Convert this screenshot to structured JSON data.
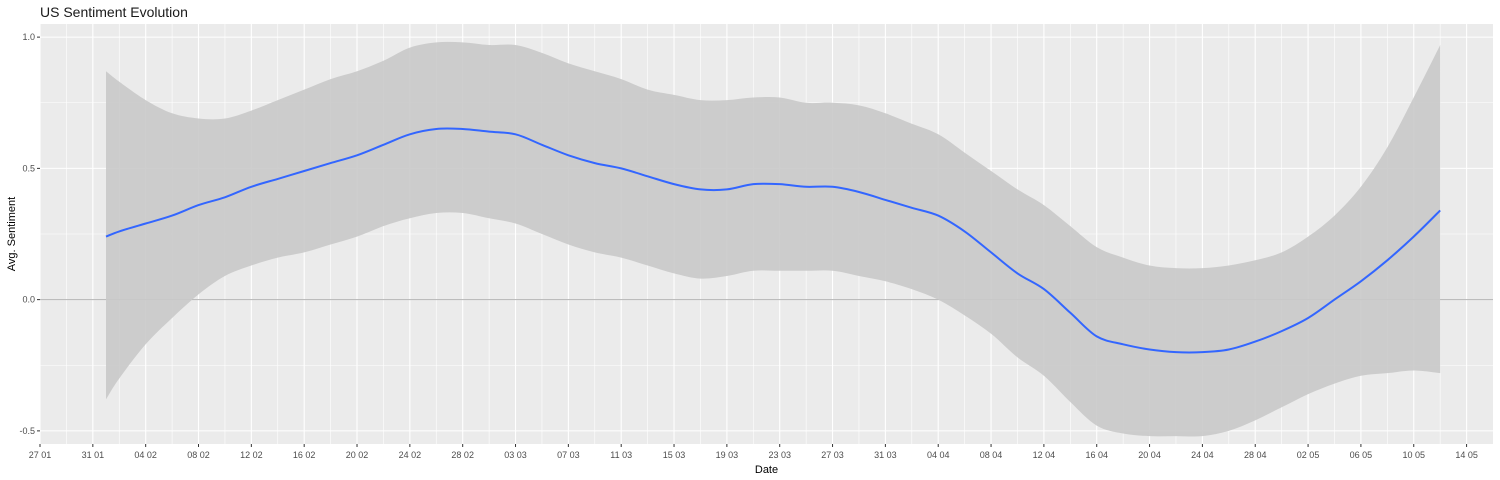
{
  "chart_data": {
    "type": "line",
    "title": "US Sentiment Evolution",
    "xlabel": "Date",
    "ylabel": "Avg. Sentiment",
    "x_range": [
      "2020-01-27",
      "2020-05-16"
    ],
    "ylim": [
      -0.55,
      1.05
    ],
    "x_ticks": [
      {
        "date": "2020-01-27",
        "label": "27 01"
      },
      {
        "date": "2020-01-31",
        "label": "31 01"
      },
      {
        "date": "2020-02-04",
        "label": "04 02"
      },
      {
        "date": "2020-02-08",
        "label": "08 02"
      },
      {
        "date": "2020-02-12",
        "label": "12 02"
      },
      {
        "date": "2020-02-16",
        "label": "16 02"
      },
      {
        "date": "2020-02-20",
        "label": "20 02"
      },
      {
        "date": "2020-02-24",
        "label": "24 02"
      },
      {
        "date": "2020-02-28",
        "label": "28 02"
      },
      {
        "date": "2020-03-03",
        "label": "03 03"
      },
      {
        "date": "2020-03-07",
        "label": "07 03"
      },
      {
        "date": "2020-03-11",
        "label": "11 03"
      },
      {
        "date": "2020-03-15",
        "label": "15 03"
      },
      {
        "date": "2020-03-19",
        "label": "19 03"
      },
      {
        "date": "2020-03-23",
        "label": "23 03"
      },
      {
        "date": "2020-03-27",
        "label": "27 03"
      },
      {
        "date": "2020-03-31",
        "label": "31 03"
      },
      {
        "date": "2020-04-04",
        "label": "04 04"
      },
      {
        "date": "2020-04-08",
        "label": "08 04"
      },
      {
        "date": "2020-04-12",
        "label": "12 04"
      },
      {
        "date": "2020-04-16",
        "label": "16 04"
      },
      {
        "date": "2020-04-20",
        "label": "20 04"
      },
      {
        "date": "2020-04-24",
        "label": "24 04"
      },
      {
        "date": "2020-04-28",
        "label": "28 04"
      },
      {
        "date": "2020-05-02",
        "label": "02 05"
      },
      {
        "date": "2020-05-06",
        "label": "06 05"
      },
      {
        "date": "2020-05-10",
        "label": "10 05"
      },
      {
        "date": "2020-05-14",
        "label": "14 05"
      }
    ],
    "y_ticks": [
      {
        "value": -0.5,
        "label": "-0.5"
      },
      {
        "value": 0.0,
        "label": "0.0"
      },
      {
        "value": 0.5,
        "label": "0.5"
      },
      {
        "value": 1.0,
        "label": "1.0"
      }
    ],
    "reference_line": {
      "y": 0.0
    },
    "grid": true,
    "legend": "none",
    "colors": {
      "line": "#3366ff",
      "ribbon": "#c9c9c9",
      "panel": "#ebebeb",
      "grid": "#ffffff",
      "reference": "#b3b3b3"
    },
    "series": [
      {
        "points": [
          {
            "x": "2020-02-01",
            "y": 0.24,
            "lower": -0.38,
            "upper": 0.87
          },
          {
            "x": "2020-02-02",
            "y": 0.26,
            "lower": -0.3,
            "upper": 0.83
          },
          {
            "x": "2020-02-04",
            "y": 0.29,
            "lower": -0.17,
            "upper": 0.76
          },
          {
            "x": "2020-02-06",
            "y": 0.32,
            "lower": -0.07,
            "upper": 0.71
          },
          {
            "x": "2020-02-08",
            "y": 0.36,
            "lower": 0.02,
            "upper": 0.69
          },
          {
            "x": "2020-02-10",
            "y": 0.39,
            "lower": 0.09,
            "upper": 0.69
          },
          {
            "x": "2020-02-12",
            "y": 0.43,
            "lower": 0.13,
            "upper": 0.72
          },
          {
            "x": "2020-02-14",
            "y": 0.46,
            "lower": 0.16,
            "upper": 0.76
          },
          {
            "x": "2020-02-16",
            "y": 0.49,
            "lower": 0.18,
            "upper": 0.8
          },
          {
            "x": "2020-02-18",
            "y": 0.52,
            "lower": 0.21,
            "upper": 0.84
          },
          {
            "x": "2020-02-20",
            "y": 0.55,
            "lower": 0.24,
            "upper": 0.87
          },
          {
            "x": "2020-02-22",
            "y": 0.59,
            "lower": 0.28,
            "upper": 0.91
          },
          {
            "x": "2020-02-24",
            "y": 0.63,
            "lower": 0.31,
            "upper": 0.96
          },
          {
            "x": "2020-02-26",
            "y": 0.65,
            "lower": 0.33,
            "upper": 0.98
          },
          {
            "x": "2020-02-28",
            "y": 0.65,
            "lower": 0.33,
            "upper": 0.98
          },
          {
            "x": "2020-03-01",
            "y": 0.64,
            "lower": 0.31,
            "upper": 0.97
          },
          {
            "x": "2020-03-03",
            "y": 0.63,
            "lower": 0.29,
            "upper": 0.97
          },
          {
            "x": "2020-03-05",
            "y": 0.59,
            "lower": 0.25,
            "upper": 0.94
          },
          {
            "x": "2020-03-07",
            "y": 0.55,
            "lower": 0.21,
            "upper": 0.9
          },
          {
            "x": "2020-03-09",
            "y": 0.52,
            "lower": 0.18,
            "upper": 0.87
          },
          {
            "x": "2020-03-11",
            "y": 0.5,
            "lower": 0.16,
            "upper": 0.84
          },
          {
            "x": "2020-03-13",
            "y": 0.47,
            "lower": 0.13,
            "upper": 0.8
          },
          {
            "x": "2020-03-15",
            "y": 0.44,
            "lower": 0.1,
            "upper": 0.78
          },
          {
            "x": "2020-03-17",
            "y": 0.42,
            "lower": 0.08,
            "upper": 0.76
          },
          {
            "x": "2020-03-19",
            "y": 0.42,
            "lower": 0.09,
            "upper": 0.76
          },
          {
            "x": "2020-03-21",
            "y": 0.44,
            "lower": 0.11,
            "upper": 0.77
          },
          {
            "x": "2020-03-23",
            "y": 0.44,
            "lower": 0.11,
            "upper": 0.77
          },
          {
            "x": "2020-03-25",
            "y": 0.43,
            "lower": 0.11,
            "upper": 0.75
          },
          {
            "x": "2020-03-27",
            "y": 0.43,
            "lower": 0.11,
            "upper": 0.75
          },
          {
            "x": "2020-03-29",
            "y": 0.41,
            "lower": 0.09,
            "upper": 0.74
          },
          {
            "x": "2020-03-31",
            "y": 0.38,
            "lower": 0.07,
            "upper": 0.71
          },
          {
            "x": "2020-04-02",
            "y": 0.35,
            "lower": 0.04,
            "upper": 0.67
          },
          {
            "x": "2020-04-04",
            "y": 0.32,
            "lower": 0.0,
            "upper": 0.63
          },
          {
            "x": "2020-04-06",
            "y": 0.26,
            "lower": -0.06,
            "upper": 0.56
          },
          {
            "x": "2020-04-08",
            "y": 0.18,
            "lower": -0.13,
            "upper": 0.49
          },
          {
            "x": "2020-04-10",
            "y": 0.1,
            "lower": -0.22,
            "upper": 0.42
          },
          {
            "x": "2020-04-12",
            "y": 0.04,
            "lower": -0.29,
            "upper": 0.36
          },
          {
            "x": "2020-04-14",
            "y": -0.05,
            "lower": -0.39,
            "upper": 0.28
          },
          {
            "x": "2020-04-16",
            "y": -0.14,
            "lower": -0.48,
            "upper": 0.2
          },
          {
            "x": "2020-04-18",
            "y": -0.17,
            "lower": -0.51,
            "upper": 0.16
          },
          {
            "x": "2020-04-20",
            "y": -0.19,
            "lower": -0.52,
            "upper": 0.13
          },
          {
            "x": "2020-04-22",
            "y": -0.2,
            "lower": -0.52,
            "upper": 0.12
          },
          {
            "x": "2020-04-24",
            "y": -0.2,
            "lower": -0.52,
            "upper": 0.12
          },
          {
            "x": "2020-04-26",
            "y": -0.19,
            "lower": -0.5,
            "upper": 0.13
          },
          {
            "x": "2020-04-28",
            "y": -0.16,
            "lower": -0.46,
            "upper": 0.15
          },
          {
            "x": "2020-04-30",
            "y": -0.12,
            "lower": -0.41,
            "upper": 0.18
          },
          {
            "x": "2020-05-02",
            "y": -0.07,
            "lower": -0.36,
            "upper": 0.24
          },
          {
            "x": "2020-05-04",
            "y": 0.0,
            "lower": -0.32,
            "upper": 0.32
          },
          {
            "x": "2020-05-06",
            "y": 0.07,
            "lower": -0.29,
            "upper": 0.43
          },
          {
            "x": "2020-05-08",
            "y": 0.15,
            "lower": -0.28,
            "upper": 0.58
          },
          {
            "x": "2020-05-10",
            "y": 0.24,
            "lower": -0.27,
            "upper": 0.77
          },
          {
            "x": "2020-05-12",
            "y": 0.34,
            "lower": -0.28,
            "upper": 0.97
          }
        ]
      }
    ]
  }
}
